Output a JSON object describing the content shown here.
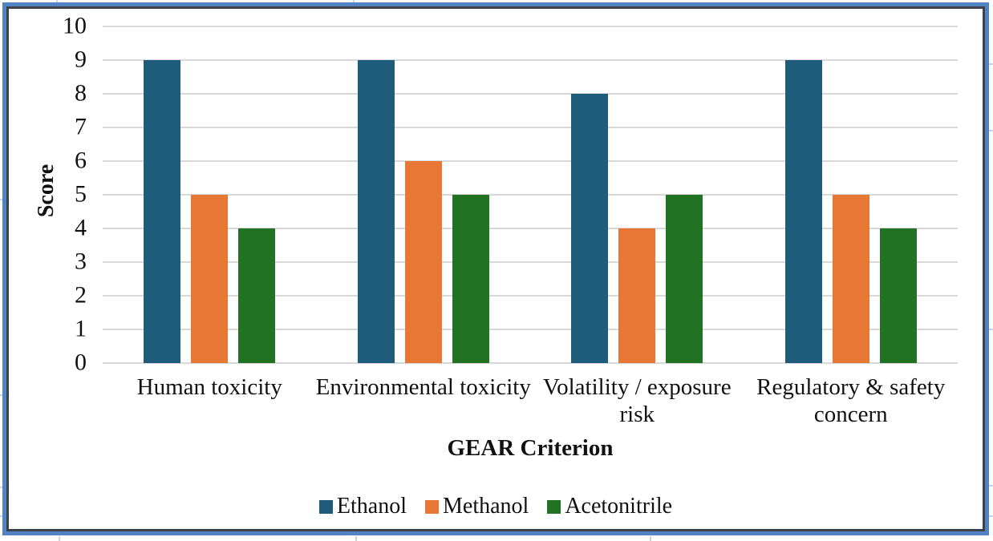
{
  "chart_data": {
    "type": "bar",
    "title": "",
    "categories": [
      "Human toxicity",
      "Environmental toxicity",
      "Volatility / exposure risk",
      "Regulatory & safety concern"
    ],
    "series": [
      {
        "name": "Ethanol",
        "color": "#1F5C7C",
        "values": [
          9,
          9,
          8,
          9
        ]
      },
      {
        "name": "Methanol",
        "color": "#E87635",
        "values": [
          5,
          6,
          4,
          5
        ]
      },
      {
        "name": "Acetonitrile",
        "color": "#217323",
        "values": [
          4,
          5,
          5,
          4
        ]
      }
    ],
    "xlabel": "GEAR Criterion",
    "ylabel": "Score",
    "ylim": [
      0,
      10
    ],
    "yticks": [
      0,
      1,
      2,
      3,
      4,
      5,
      6,
      7,
      8,
      9,
      10
    ],
    "grid": true,
    "legend_position": "bottom",
    "legend_swatch_icon": "square"
  },
  "ui": {
    "frame_border_color": "#5183C4",
    "frame_inner_border_color": "#3E4148",
    "gridline_color": "#D9D9D9",
    "worksheet_gridline_color": "#C8D4E8",
    "text_color": "#111111",
    "background_color": "#FFFFFF"
  }
}
